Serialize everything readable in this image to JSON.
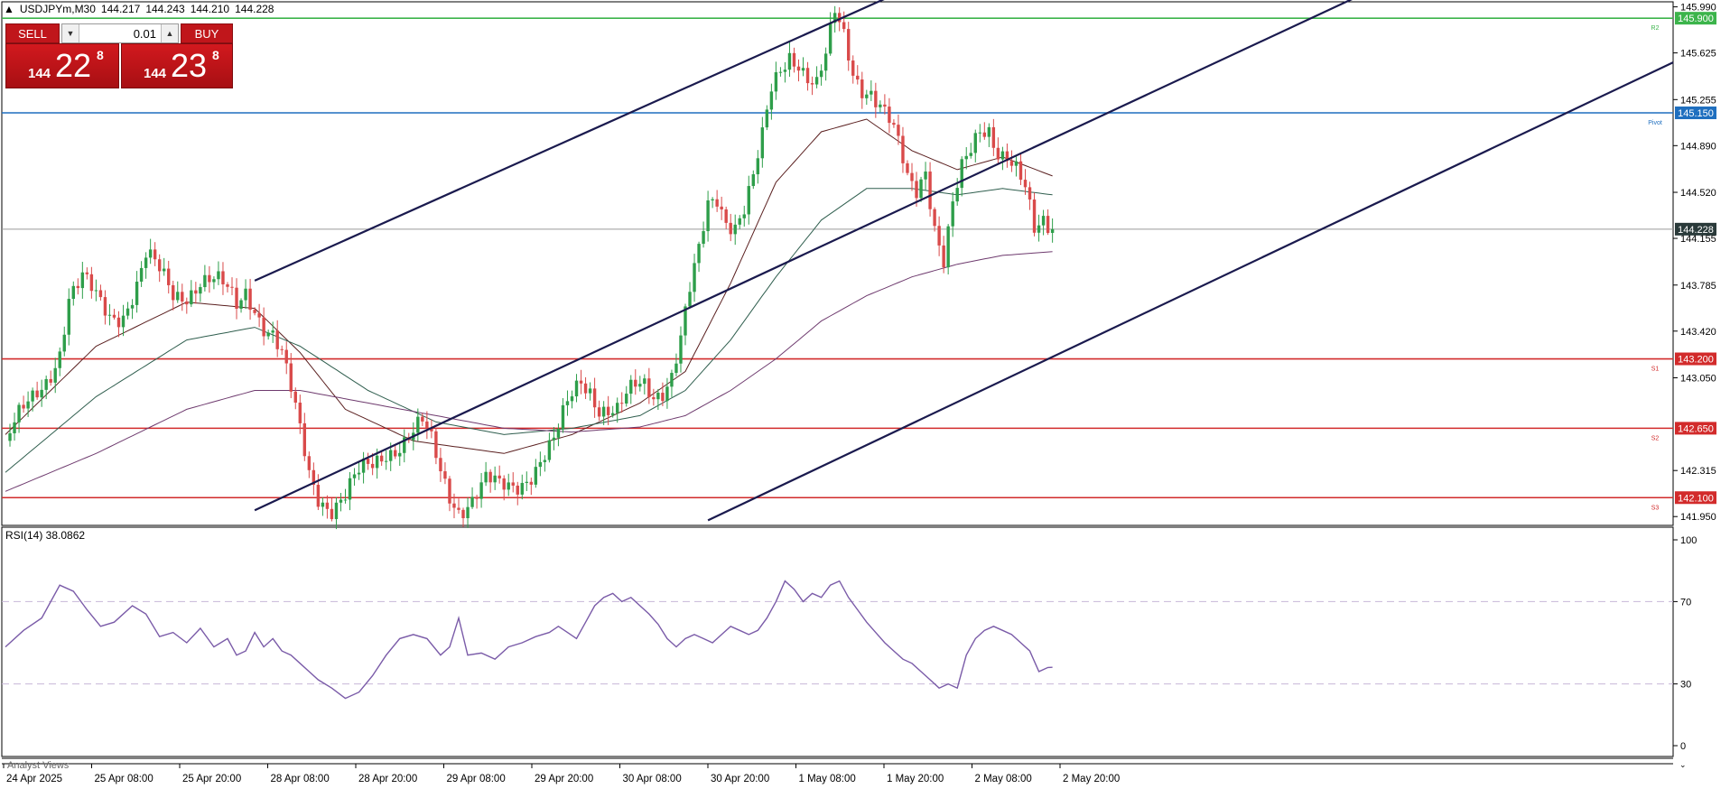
{
  "header": {
    "symbol_tf": "USDJPYm,M30",
    "open": "144.217",
    "high": "144.243",
    "low": "144.210",
    "close": "144.228"
  },
  "trade_panel": {
    "sell_label": "SELL",
    "buy_label": "BUY",
    "lot": "0.01",
    "sell_small": "144",
    "sell_big": "22",
    "sell_sup": "8",
    "buy_small": "144",
    "buy_big": "23",
    "buy_sup": "8"
  },
  "rsi_title": "RSI(14) 38.0862",
  "analyst_label": "Analyst Views",
  "colors": {
    "bull": "#2e9e4a",
    "bear": "#d94a4a",
    "support": "#d22b2b",
    "pivot": "#1f6fbf",
    "resistance": "#3cb44b",
    "channel": "#1a1a4e",
    "rsi": "#7a5ba8"
  },
  "chart_data": [
    {
      "type": "candlestick",
      "symbol": "USDJPYm",
      "timeframe": "M30",
      "price_axis_ticks": [
        "145.990",
        "145.625",
        "145.255",
        "144.890",
        "144.520",
        "144.155",
        "143.785",
        "143.420",
        "143.050",
        "142.315",
        "141.950"
      ],
      "ylim": [
        141.88,
        146.03
      ],
      "x_tick_labels": [
        "24 Apr 2025",
        "25 Apr 08:00",
        "25 Apr 20:00",
        "28 Apr 08:00",
        "28 Apr 20:00",
        "29 Apr 08:00",
        "29 Apr 20:00",
        "30 Apr 08:00",
        "30 Apr 20:00",
        "1 May 08:00",
        "1 May 20:00",
        "2 May 08:00",
        "2 May 20:00"
      ],
      "current_price": "144.228",
      "levels": [
        {
          "name": "R2",
          "value": "145.900",
          "kind": "resistance"
        },
        {
          "name": "Pivot",
          "value": "145.150",
          "kind": "pivot"
        },
        {
          "name": "S1",
          "value": "143.200",
          "kind": "support"
        },
        {
          "name": "S2",
          "value": "142.650",
          "kind": "support"
        },
        {
          "name": "S3",
          "value": "142.100",
          "kind": "support"
        }
      ],
      "close_path": [
        [
          0,
          142.55
        ],
        [
          3,
          142.7
        ],
        [
          6,
          142.85
        ],
        [
          9,
          143.05
        ],
        [
          12,
          143.3
        ],
        [
          14,
          143.7
        ],
        [
          17,
          143.8
        ],
        [
          20,
          143.65
        ],
        [
          23,
          143.55
        ],
        [
          26,
          143.6
        ],
        [
          29,
          143.8
        ],
        [
          31,
          144.0
        ],
        [
          34,
          143.85
        ],
        [
          37,
          143.7
        ],
        [
          40,
          143.75
        ],
        [
          43,
          143.85
        ],
        [
          46,
          143.8
        ],
        [
          49,
          143.7
        ],
        [
          51,
          143.6
        ],
        [
          53,
          143.75
        ],
        [
          55,
          143.65
        ],
        [
          57,
          143.5
        ],
        [
          59,
          143.4
        ],
        [
          61,
          143.2
        ],
        [
          63,
          142.9
        ],
        [
          65,
          142.6
        ],
        [
          67,
          142.3
        ],
        [
          69,
          142.15
        ],
        [
          72,
          142.05
        ],
        [
          75,
          142.1
        ],
        [
          78,
          142.25
        ],
        [
          81,
          142.35
        ],
        [
          84,
          142.5
        ],
        [
          87,
          142.55
        ],
        [
          90,
          142.6
        ],
        [
          92,
          142.65
        ],
        [
          94,
          142.5
        ],
        [
          96,
          142.3
        ],
        [
          98,
          142.15
        ],
        [
          100,
          142.05
        ],
        [
          103,
          142.1
        ],
        [
          106,
          142.2
        ],
        [
          109,
          142.15
        ],
        [
          112,
          142.2
        ],
        [
          115,
          142.3
        ],
        [
          118,
          142.4
        ],
        [
          121,
          142.5
        ],
        [
          123,
          142.7
        ],
        [
          125,
          142.9
        ],
        [
          127,
          143.05
        ],
        [
          129,
          143.0
        ],
        [
          131,
          142.85
        ],
        [
          133,
          142.8
        ],
        [
          135,
          142.75
        ],
        [
          137,
          142.85
        ],
        [
          139,
          142.95
        ],
        [
          141,
          143.0
        ],
        [
          143,
          142.95
        ],
        [
          145,
          143.0
        ],
        [
          147,
          143.1
        ],
        [
          149,
          143.35
        ],
        [
          151,
          143.7
        ],
        [
          153,
          144.0
        ],
        [
          155,
          144.4
        ],
        [
          157,
          144.5
        ],
        [
          159,
          144.35
        ],
        [
          161,
          144.3
        ],
        [
          163,
          144.4
        ],
        [
          165,
          144.6
        ],
        [
          167,
          144.9
        ],
        [
          169,
          145.3
        ],
        [
          171,
          145.5
        ],
        [
          173,
          145.65
        ],
        [
          175,
          145.6
        ],
        [
          177,
          145.45
        ],
        [
          179,
          145.35
        ],
        [
          181,
          145.55
        ],
        [
          183,
          145.9
        ],
        [
          185,
          145.75
        ],
        [
          187,
          145.5
        ],
        [
          189,
          145.4
        ],
        [
          191,
          145.35
        ],
        [
          193,
          145.2
        ],
        [
          195,
          145.05
        ],
        [
          197,
          144.85
        ],
        [
          199,
          144.6
        ],
        [
          201,
          144.55
        ],
        [
          203,
          144.75
        ],
        [
          205,
          144.3
        ],
        [
          207,
          144.0
        ],
        [
          209,
          144.4
        ],
        [
          211,
          144.65
        ],
        [
          213,
          144.8
        ],
        [
          215,
          145.0
        ],
        [
          217,
          145.05
        ],
        [
          219,
          144.9
        ],
        [
          221,
          144.85
        ],
        [
          223,
          144.7
        ],
        [
          225,
          144.5
        ],
        [
          227,
          144.15
        ],
        [
          229,
          144.25
        ],
        [
          231,
          144.228
        ]
      ],
      "moving_averages": [
        {
          "color": "#5a1f1f",
          "path": [
            [
              0,
              142.6
            ],
            [
              20,
              143.3
            ],
            [
              40,
              143.65
            ],
            [
              55,
              143.6
            ],
            [
              65,
              143.25
            ],
            [
              75,
              142.8
            ],
            [
              90,
              142.55
            ],
            [
              110,
              142.45
            ],
            [
              125,
              142.6
            ],
            [
              140,
              142.85
            ],
            [
              150,
              143.1
            ],
            [
              160,
              143.8
            ],
            [
              170,
              144.6
            ],
            [
              180,
              145.0
            ],
            [
              190,
              145.1
            ],
            [
              200,
              144.85
            ],
            [
              210,
              144.7
            ],
            [
              220,
              144.8
            ],
            [
              231,
              144.65
            ]
          ]
        },
        {
          "color": "#2f5e4e",
          "path": [
            [
              0,
              142.3
            ],
            [
              20,
              142.9
            ],
            [
              40,
              143.35
            ],
            [
              55,
              143.45
            ],
            [
              65,
              143.3
            ],
            [
              80,
              142.95
            ],
            [
              95,
              142.7
            ],
            [
              110,
              142.6
            ],
            [
              125,
              142.65
            ],
            [
              140,
              142.75
            ],
            [
              150,
              142.95
            ],
            [
              160,
              143.35
            ],
            [
              170,
              143.85
            ],
            [
              180,
              144.3
            ],
            [
              190,
              144.55
            ],
            [
              200,
              144.55
            ],
            [
              210,
              144.5
            ],
            [
              220,
              144.55
            ],
            [
              231,
              144.5
            ]
          ]
        },
        {
          "color": "#6e3a6e",
          "path": [
            [
              0,
              142.15
            ],
            [
              20,
              142.45
            ],
            [
              40,
              142.8
            ],
            [
              55,
              142.95
            ],
            [
              65,
              142.95
            ],
            [
              80,
              142.85
            ],
            [
              95,
              142.75
            ],
            [
              110,
              142.65
            ],
            [
              125,
              142.62
            ],
            [
              140,
              142.66
            ],
            [
              150,
              142.75
            ],
            [
              160,
              142.95
            ],
            [
              170,
              143.2
            ],
            [
              180,
              143.5
            ],
            [
              190,
              143.7
            ],
            [
              200,
              143.85
            ],
            [
              210,
              143.95
            ],
            [
              220,
              144.02
            ],
            [
              231,
              144.05
            ]
          ]
        }
      ],
      "channel_lines": [
        {
          "from": [
            55,
            143.82
          ],
          "to": [
            200,
            146.15
          ]
        },
        {
          "from": [
            55,
            142.0
          ],
          "to": [
            300,
            146.1
          ]
        },
        {
          "from": [
            155,
            141.92
          ],
          "to": [
            372,
            145.55
          ]
        }
      ]
    },
    {
      "type": "line",
      "name": "RSI(14)",
      "value": "38.0862",
      "ylim": [
        0,
        100
      ],
      "axis_ticks": [
        "100",
        "70",
        "30",
        "0"
      ],
      "levels": [
        70,
        30
      ],
      "path": [
        [
          0,
          48
        ],
        [
          4,
          56
        ],
        [
          8,
          62
        ],
        [
          12,
          78
        ],
        [
          15,
          75
        ],
        [
          18,
          66
        ],
        [
          21,
          58
        ],
        [
          24,
          60
        ],
        [
          28,
          68
        ],
        [
          31,
          64
        ],
        [
          34,
          53
        ],
        [
          37,
          55
        ],
        [
          40,
          50
        ],
        [
          43,
          57
        ],
        [
          46,
          48
        ],
        [
          49,
          52
        ],
        [
          51,
          44
        ],
        [
          53,
          46
        ],
        [
          55,
          55
        ],
        [
          57,
          48
        ],
        [
          59,
          52
        ],
        [
          61,
          46
        ],
        [
          63,
          44
        ],
        [
          65,
          40
        ],
        [
          67,
          36
        ],
        [
          69,
          32
        ],
        [
          72,
          28
        ],
        [
          75,
          23
        ],
        [
          78,
          26
        ],
        [
          81,
          34
        ],
        [
          84,
          44
        ],
        [
          87,
          52
        ],
        [
          90,
          54
        ],
        [
          93,
          52
        ],
        [
          96,
          44
        ],
        [
          98,
          48
        ],
        [
          100,
          62
        ],
        [
          102,
          44
        ],
        [
          105,
          45
        ],
        [
          108,
          42
        ],
        [
          111,
          48
        ],
        [
          114,
          50
        ],
        [
          117,
          53
        ],
        [
          120,
          55
        ],
        [
          122,
          58
        ],
        [
          124,
          55
        ],
        [
          126,
          52
        ],
        [
          128,
          60
        ],
        [
          130,
          68
        ],
        [
          132,
          72
        ],
        [
          134,
          74
        ],
        [
          136,
          70
        ],
        [
          138,
          72
        ],
        [
          140,
          68
        ],
        [
          142,
          64
        ],
        [
          144,
          59
        ],
        [
          146,
          52
        ],
        [
          148,
          48
        ],
        [
          150,
          52
        ],
        [
          152,
          54
        ],
        [
          154,
          52
        ],
        [
          156,
          50
        ],
        [
          158,
          54
        ],
        [
          160,
          58
        ],
        [
          162,
          56
        ],
        [
          164,
          54
        ],
        [
          166,
          56
        ],
        [
          168,
          62
        ],
        [
          170,
          70
        ],
        [
          172,
          80
        ],
        [
          174,
          76
        ],
        [
          176,
          70
        ],
        [
          178,
          74
        ],
        [
          180,
          72
        ],
        [
          182,
          78
        ],
        [
          184,
          80
        ],
        [
          186,
          72
        ],
        [
          188,
          66
        ],
        [
          190,
          60
        ],
        [
          192,
          55
        ],
        [
          194,
          50
        ],
        [
          196,
          46
        ],
        [
          198,
          42
        ],
        [
          200,
          40
        ],
        [
          202,
          36
        ],
        [
          204,
          32
        ],
        [
          206,
          28
        ],
        [
          208,
          30
        ],
        [
          210,
          28
        ],
        [
          212,
          44
        ],
        [
          214,
          52
        ],
        [
          216,
          56
        ],
        [
          218,
          58
        ],
        [
          220,
          56
        ],
        [
          222,
          54
        ],
        [
          224,
          50
        ],
        [
          226,
          46
        ],
        [
          228,
          36
        ],
        [
          230,
          38
        ],
        [
          231,
          38.0862
        ]
      ]
    }
  ]
}
